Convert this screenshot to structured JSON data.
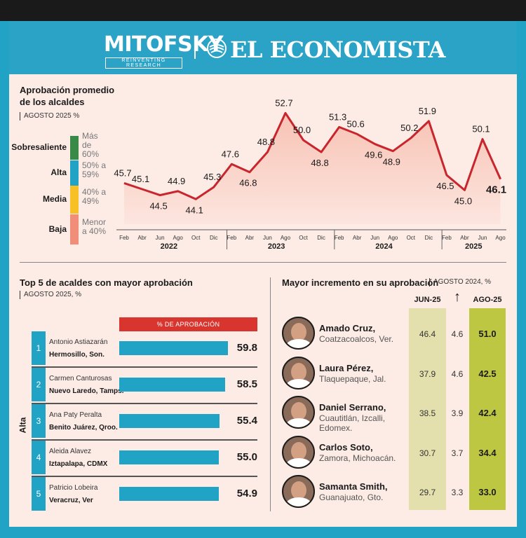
{
  "header": {
    "brand_primary": "MITOFSKY",
    "brand_tagline": "REINVENTING RESEARCH",
    "brand_secondary": "EL ECONOMISTA"
  },
  "colors": {
    "frame": "#21a3c6",
    "panel": "#fdece6",
    "line": "#c8252d",
    "bar_blue": "#21a3c6",
    "header_red": "#d9352f",
    "sobresaliente": "#3a8a47",
    "alta": "#21a3c6",
    "media": "#f6c026",
    "baja": "#f08e79",
    "jun_col": "#e4e0ad",
    "ago_col": "#bdc742"
  },
  "approval": {
    "title_line1": "Aprobación promedio",
    "title_line2": "de los alcaldes",
    "subtitle": "AGOSTO 2025 %",
    "levels": [
      {
        "name": "Sobresaliente",
        "desc_lines": [
          "Más",
          "de",
          "60%"
        ],
        "color": "#3a8a47"
      },
      {
        "name": "Alta",
        "desc_lines": [
          "50% a",
          "59%"
        ],
        "color": "#21a3c6"
      },
      {
        "name": "Media",
        "desc_lines": [
          "40% a",
          "49%"
        ],
        "color": "#f6c026"
      },
      {
        "name": "Baja",
        "desc_lines": [
          "Menor",
          "a 40%"
        ],
        "color": "#f08e79"
      }
    ]
  },
  "chart_data": {
    "type": "line",
    "title": "Aprobación promedio de los alcaldes",
    "subtitle": "AGOSTO 2025 %",
    "x": [
      "Feb",
      "Abr",
      "Jun",
      "Ago",
      "Oct",
      "Dic",
      "Feb",
      "Abr",
      "Jun",
      "Ago",
      "Oct",
      "Dic",
      "Feb",
      "Abr",
      "Jun",
      "Ago",
      "Oct",
      "Dic",
      "Feb",
      "Abr",
      "Jun",
      "Ago"
    ],
    "years": [
      {
        "label": "2022",
        "months": 6
      },
      {
        "label": "2023",
        "months": 6
      },
      {
        "label": "2024",
        "months": 6
      },
      {
        "label": "2025",
        "months": 4
      }
    ],
    "values": [
      45.7,
      45.1,
      44.5,
      44.9,
      44.1,
      45.3,
      47.6,
      46.8,
      48.8,
      52.7,
      50.0,
      48.8,
      51.3,
      50.6,
      49.6,
      48.9,
      50.2,
      51.9,
      46.5,
      45.0,
      50.1,
      46.1
    ],
    "value_labels": [
      "45.7",
      "45.1",
      "44.5",
      "44.9",
      "44.1",
      "45.3",
      "47.6",
      "46.8",
      "48.8",
      "52.7",
      "50.0",
      "48.8",
      "51.3",
      "50.6",
      "49.6",
      "48.9",
      "50.2",
      "51.9",
      "46.5",
      "45.0",
      "50.1",
      "46.1"
    ],
    "ylim": [
      43.0,
      53.5
    ],
    "xlabel": "",
    "ylabel": ""
  },
  "top5": {
    "title": "Top 5 de acaldes con mayor aprobación",
    "subtitle": "AGOSTO 2025, %",
    "column_label": "% DE APROBACIÓN",
    "group_label": "Alta",
    "bar_max": 60,
    "items": [
      {
        "rank": "1",
        "name": "Antonio Astiazarán",
        "city": "Hermosillo, Son.",
        "value": 59.8,
        "value_label": "59.8"
      },
      {
        "rank": "2",
        "name": "Carmen Canturosas",
        "city": "Nuevo Laredo, Tamps.",
        "value": 58.5,
        "value_label": "58.5"
      },
      {
        "rank": "3",
        "name": "Ana Paty Peralta",
        "city": "Benito Juárez, Qroo.",
        "value": 55.4,
        "value_label": "55.4"
      },
      {
        "rank": "4",
        "name": "Aleida Alavez",
        "city": "Iztapalapa, CDMX",
        "value": 55.0,
        "value_label": "55.0"
      },
      {
        "rank": "5",
        "name": "Patricio Lobeira",
        "city": "Veracruz, Ver",
        "value": 54.9,
        "value_label": "54.9"
      }
    ]
  },
  "increase": {
    "title": "Mayor incremento en su aprobación",
    "subtitle": "AGOSTO 2024, %",
    "col_jun": "JUN-25",
    "col_arrow": "↑",
    "col_ago": "AGO-25",
    "items": [
      {
        "name": "Amado Cruz,",
        "city_lines": [
          "Coatzacoalcos, Ver."
        ],
        "jun": "46.4",
        "delta": "4.6",
        "ago": "51.0"
      },
      {
        "name": "Laura Pérez,",
        "city_lines": [
          "Tlaquepaque, Jal."
        ],
        "jun": "37.9",
        "delta": "4.6",
        "ago": "42.5"
      },
      {
        "name": "Daniel Serrano,",
        "city_lines": [
          "Cuautitlán, Izcalli,",
          "Edomex."
        ],
        "jun": "38.5",
        "delta": "3.9",
        "ago": "42.4"
      },
      {
        "name": "Carlos Soto,",
        "city_lines": [
          "Zamora, Michoacán."
        ],
        "jun": "30.7",
        "delta": "3.7",
        "ago": "34.4"
      },
      {
        "name": "Samanta Smith,",
        "city_lines": [
          "Guanajuato, Gto."
        ],
        "jun": "29.7",
        "delta": "3.3",
        "ago": "33.0"
      }
    ]
  }
}
